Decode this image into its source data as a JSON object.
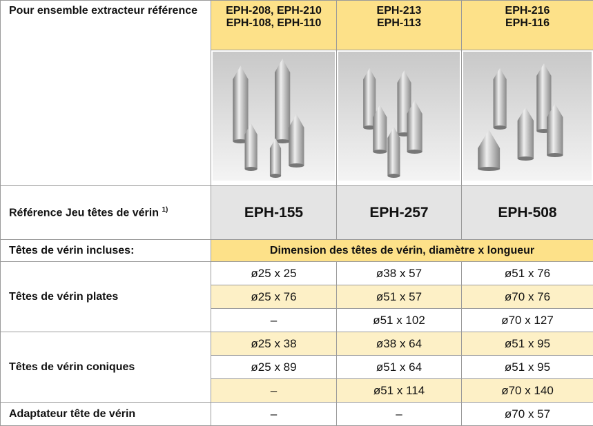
{
  "header": {
    "title": "Pour ensemble extracteur référence",
    "columns": [
      "EPH-208, EPH-210\nEPH-108, EPH-110",
      "EPH-213\nEPH-113",
      "EPH-216\nEPH-116"
    ]
  },
  "reference": {
    "label": "Référence Jeu têtes de vérin",
    "footnote": "1)",
    "values": [
      "EPH-155",
      "EPH-257",
      "EPH-508"
    ]
  },
  "included": {
    "label": "Têtes de vérin incluses:",
    "span_header": "Dimension des têtes de vérin, diamètre x longueur"
  },
  "groups": [
    {
      "label": "Têtes de vérin plates",
      "rows": [
        [
          "ø25 x 25",
          "ø38 x 57",
          "ø51 x 76"
        ],
        [
          "ø25 x 76",
          "ø51 x 57",
          "ø70 x 76"
        ],
        [
          "–",
          "ø51 x 102",
          "ø70 x 127"
        ]
      ]
    },
    {
      "label": "Têtes de vérin coniques",
      "rows": [
        [
          "ø25 x 38",
          "ø38 x 64",
          "ø51 x 95"
        ],
        [
          "ø25 x 89",
          "ø51 x 64",
          "ø51 x 95"
        ],
        [
          "–",
          "ø51 x 114",
          "ø70 x 140"
        ]
      ]
    },
    {
      "label": "Adaptateur tête de vérin",
      "rows": [
        [
          "–",
          "–",
          "ø70 x 57"
        ]
      ]
    }
  ]
}
